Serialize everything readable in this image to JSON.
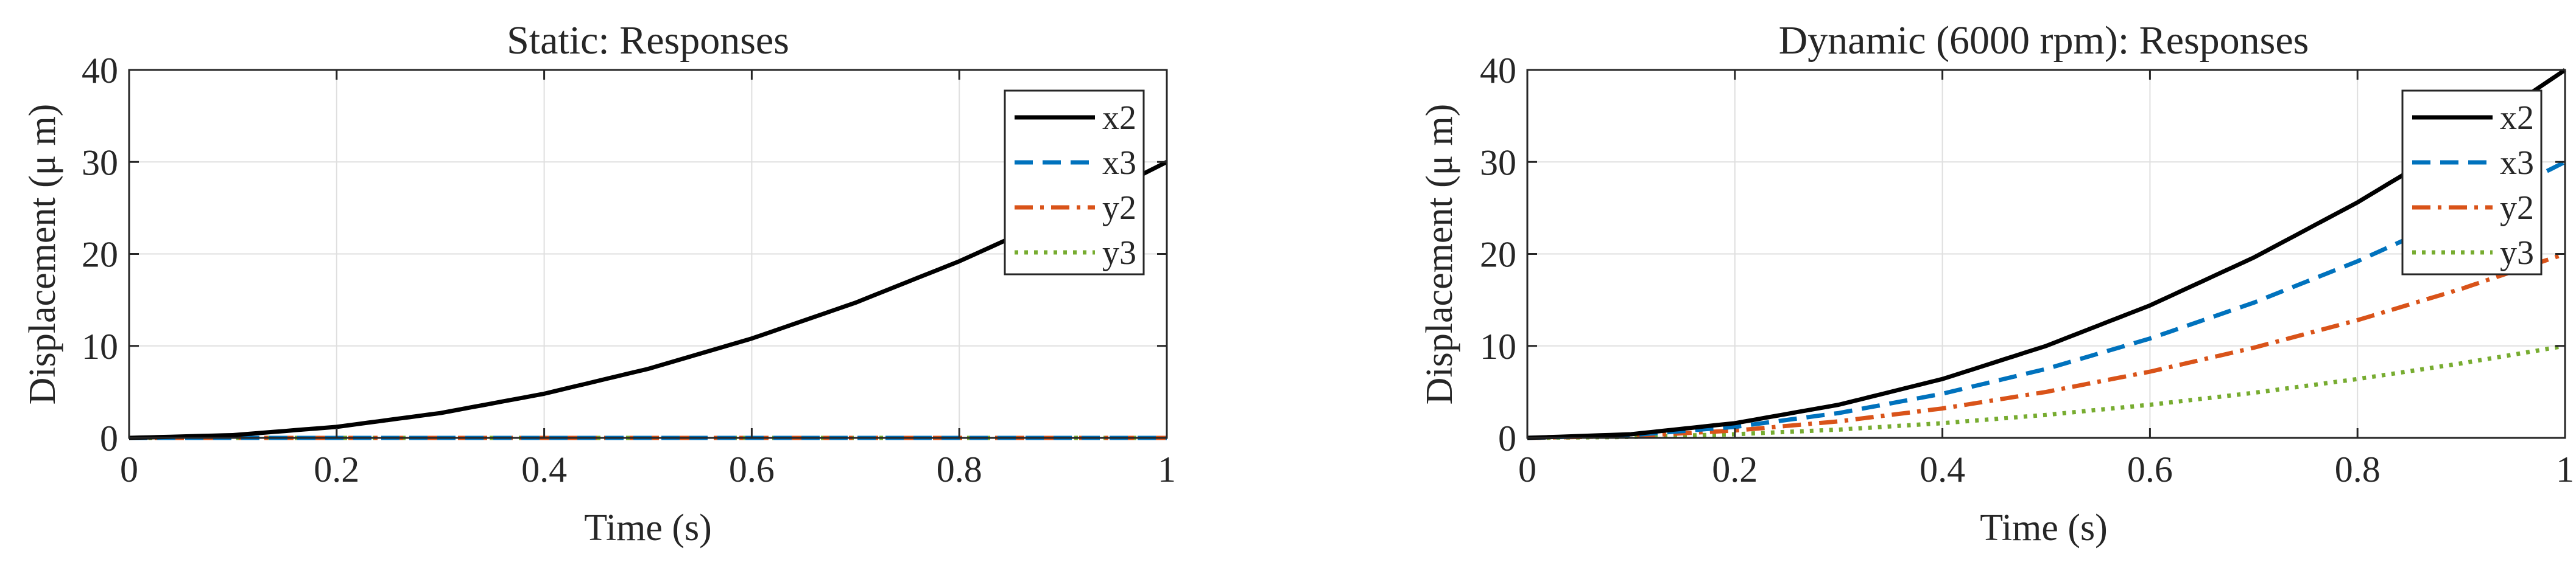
{
  "chart_data": [
    {
      "type": "line",
      "title": "Static: Responses",
      "xlabel": "Time (s)",
      "ylabel": "Displacement (μ m)",
      "xlim": [
        0,
        1
      ],
      "ylim": [
        0,
        40
      ],
      "xticks": [
        0,
        0.2,
        0.4,
        0.6,
        0.8,
        1
      ],
      "xtick_labels": [
        "0",
        "0.2",
        "0.4",
        "0.6",
        "0.8",
        "1"
      ],
      "yticks": [
        0,
        10,
        20,
        30,
        40
      ],
      "ytick_labels": [
        "0",
        "10",
        "20",
        "30",
        "40"
      ],
      "grid": true,
      "legend_position": "top-right",
      "x": [
        0,
        0.1,
        0.2,
        0.3,
        0.4,
        0.5,
        0.6,
        0.7,
        0.8,
        0.9,
        1.0
      ],
      "series": [
        {
          "name": "x2",
          "color": "#000000",
          "style": "solid",
          "values": [
            0,
            0.3,
            1.2,
            2.7,
            4.8,
            7.5,
            10.8,
            14.7,
            19.2,
            24.3,
            30.0
          ]
        },
        {
          "name": "x3",
          "color": "#0072BD",
          "style": "dashed",
          "values": [
            0,
            0,
            0,
            0,
            0,
            0,
            0,
            0,
            0,
            0,
            0
          ]
        },
        {
          "name": "y2",
          "color": "#D95319",
          "style": "dashdot",
          "values": [
            0,
            0,
            0,
            0,
            0,
            0,
            0,
            0,
            0,
            0,
            0
          ]
        },
        {
          "name": "y3",
          "color": "#77AC30",
          "style": "dotted",
          "values": [
            0,
            0,
            0,
            0,
            0,
            0,
            0,
            0,
            0,
            0,
            0
          ]
        }
      ]
    },
    {
      "type": "line",
      "title": "Dynamic (6000 rpm): Responses",
      "xlabel": "Time (s)",
      "ylabel": "Displacement (μ m)",
      "xlim": [
        0,
        1
      ],
      "ylim": [
        0,
        40
      ],
      "xticks": [
        0,
        0.2,
        0.4,
        0.6,
        0.8,
        1
      ],
      "xtick_labels": [
        "0",
        "0.2",
        "0.4",
        "0.6",
        "0.8",
        "1"
      ],
      "yticks": [
        0,
        10,
        20,
        30,
        40
      ],
      "ytick_labels": [
        "0",
        "10",
        "20",
        "30",
        "40"
      ],
      "grid": true,
      "legend_position": "top-right",
      "x": [
        0,
        0.1,
        0.2,
        0.3,
        0.4,
        0.5,
        0.6,
        0.7,
        0.8,
        0.9,
        1.0
      ],
      "series": [
        {
          "name": "x2",
          "color": "#000000",
          "style": "solid",
          "values": [
            0,
            0.4,
            1.6,
            3.6,
            6.4,
            10.0,
            14.4,
            19.6,
            25.6,
            32.4,
            40.0
          ]
        },
        {
          "name": "x3",
          "color": "#0072BD",
          "style": "dashed",
          "values": [
            0,
            0.3,
            1.2,
            2.7,
            4.8,
            7.5,
            10.8,
            14.7,
            19.2,
            24.3,
            30.0
          ]
        },
        {
          "name": "y2",
          "color": "#D95319",
          "style": "dashdot",
          "values": [
            0,
            0.2,
            0.8,
            1.8,
            3.2,
            5.0,
            7.2,
            9.8,
            12.8,
            16.2,
            20.0
          ]
        },
        {
          "name": "y3",
          "color": "#77AC30",
          "style": "dotted",
          "values": [
            0,
            0.1,
            0.4,
            0.9,
            1.6,
            2.5,
            3.6,
            4.9,
            6.4,
            8.1,
            10.0
          ]
        }
      ]
    }
  ]
}
